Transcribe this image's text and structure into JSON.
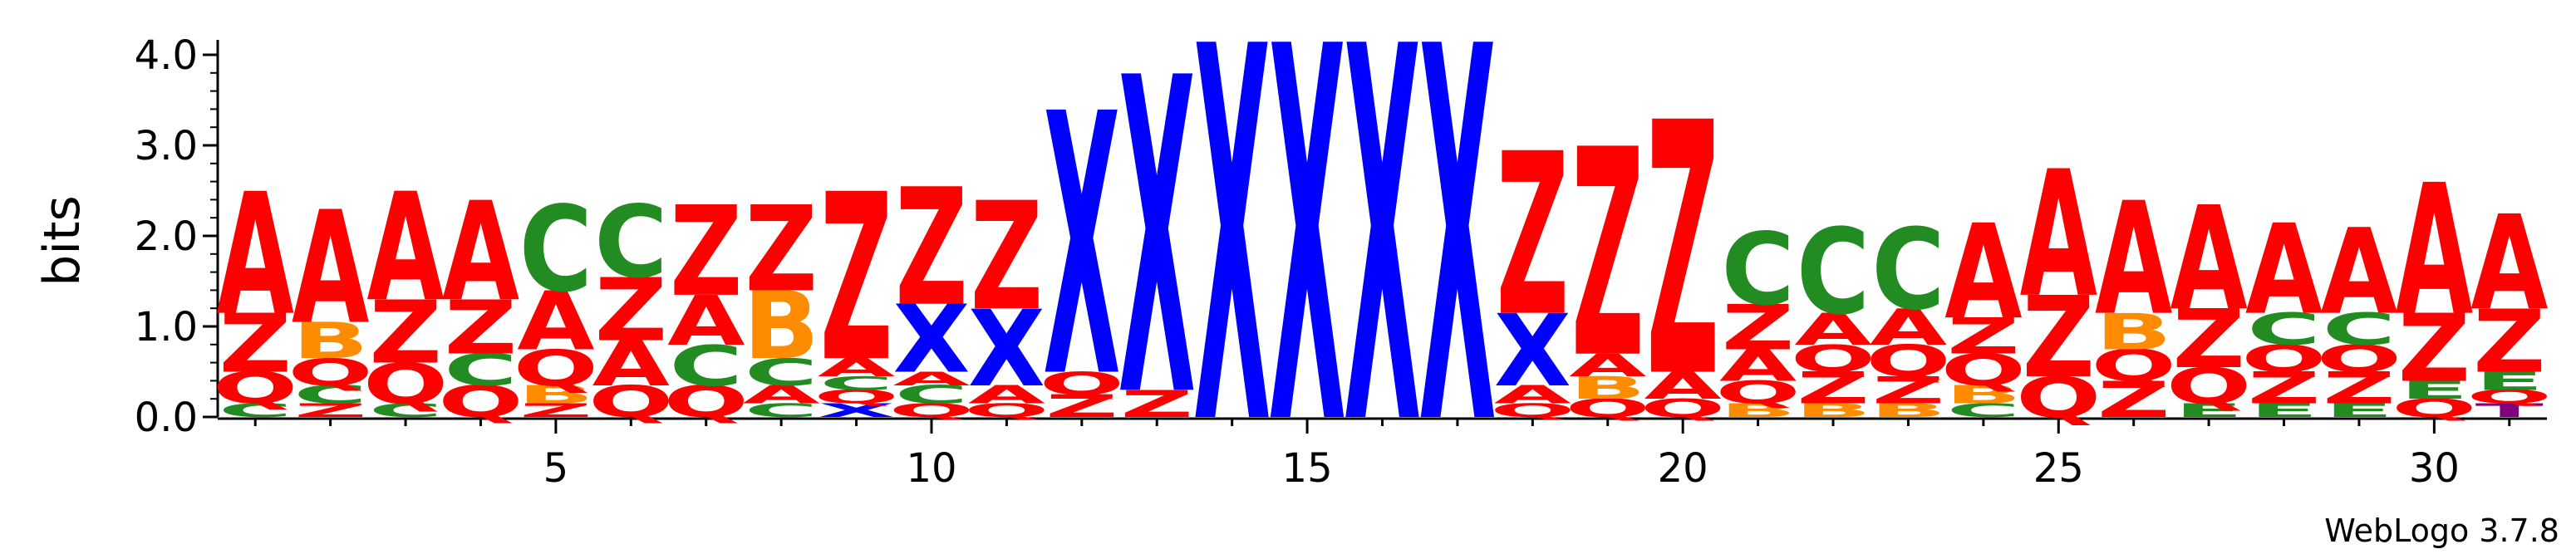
{
  "chart_data": {
    "type": "sequence-logo",
    "ylabel": "bits",
    "ylim": [
      0,
      4.0
    ],
    "y_ticks": [
      "0.0",
      "1.0",
      "2.0",
      "3.0",
      "4.0"
    ],
    "x_ticks": [
      5,
      10,
      15,
      20,
      25,
      30
    ],
    "positions_count": 31,
    "footer": "WebLogo 3.7.8",
    "colors": {
      "A": "#ff0000",
      "Z": "#ff0000",
      "Q": "#ff0000",
      "C": "#228b22",
      "E": "#228b22",
      "B": "#ff8c00",
      "X": "#0000ff",
      "T": "#800080"
    },
    "stacks": [
      {
        "pos": 1,
        "letters": [
          [
            "C",
            0.15
          ],
          [
            "Q",
            0.35
          ],
          [
            "Z",
            0.65
          ],
          [
            "A",
            1.35
          ]
        ]
      },
      {
        "pos": 2,
        "letters": [
          [
            "Z",
            0.15
          ],
          [
            "C",
            0.2
          ],
          [
            "Q",
            0.3
          ],
          [
            "B",
            0.4
          ],
          [
            "A",
            1.25
          ]
        ]
      },
      {
        "pos": 3,
        "letters": [
          [
            "C",
            0.15
          ],
          [
            "Q",
            0.45
          ],
          [
            "Z",
            0.7
          ],
          [
            "A",
            1.2
          ]
        ]
      },
      {
        "pos": 4,
        "letters": [
          [
            "Q",
            0.35
          ],
          [
            "C",
            0.35
          ],
          [
            "Z",
            0.6
          ],
          [
            "A",
            1.1
          ]
        ]
      },
      {
        "pos": 5,
        "letters": [
          [
            "Z",
            0.15
          ],
          [
            "B",
            0.2
          ],
          [
            "Q",
            0.4
          ],
          [
            "A",
            0.65
          ],
          [
            "C",
            0.95
          ]
        ]
      },
      {
        "pos": 6,
        "letters": [
          [
            "Q",
            0.35
          ],
          [
            "A",
            0.5
          ],
          [
            "Z",
            0.7
          ],
          [
            "C",
            0.8
          ]
        ]
      },
      {
        "pos": 7,
        "letters": [
          [
            "Q",
            0.35
          ],
          [
            "C",
            0.45
          ],
          [
            "A",
            0.55
          ],
          [
            "Z",
            1.0
          ]
        ]
      },
      {
        "pos": 8,
        "letters": [
          [
            "C",
            0.15
          ],
          [
            "A",
            0.2
          ],
          [
            "C",
            0.3
          ],
          [
            "B",
            0.75
          ],
          [
            "Z",
            0.95
          ]
        ]
      },
      {
        "pos": 9,
        "letters": [
          [
            "X",
            0.15
          ],
          [
            "Q",
            0.15
          ],
          [
            "C",
            0.15
          ],
          [
            "A",
            0.2
          ],
          [
            "Z",
            1.85
          ]
        ]
      },
      {
        "pos": 10,
        "letters": [
          [
            "Q",
            0.15
          ],
          [
            "C",
            0.2
          ],
          [
            "A",
            0.15
          ],
          [
            "X",
            0.75
          ],
          [
            "Z",
            1.3
          ]
        ]
      },
      {
        "pos": 11,
        "letters": [
          [
            "Q",
            0.15
          ],
          [
            "A",
            0.2
          ],
          [
            "X",
            0.85
          ],
          [
            "Z",
            1.2
          ]
        ]
      },
      {
        "pos": 12,
        "letters": [
          [
            "Z",
            0.25
          ],
          [
            "Q",
            0.25
          ],
          [
            "X",
            2.9
          ]
        ]
      },
      {
        "pos": 13,
        "letters": [
          [
            "Z",
            0.3
          ],
          [
            "X",
            3.5
          ]
        ]
      },
      {
        "pos": 14,
        "letters": [
          [
            "X",
            4.15
          ]
        ]
      },
      {
        "pos": 15,
        "letters": [
          [
            "X",
            4.15
          ]
        ]
      },
      {
        "pos": 16,
        "letters": [
          [
            "X",
            4.15
          ]
        ]
      },
      {
        "pos": 17,
        "letters": [
          [
            "X",
            4.15
          ]
        ]
      },
      {
        "pos": 18,
        "letters": [
          [
            "Q",
            0.15
          ],
          [
            "A",
            0.2
          ],
          [
            "X",
            0.8
          ],
          [
            "Z",
            1.8
          ]
        ]
      },
      {
        "pos": 19,
        "letters": [
          [
            "Q",
            0.2
          ],
          [
            "B",
            0.25
          ],
          [
            "A",
            0.25
          ],
          [
            "Z",
            2.3
          ]
        ]
      },
      {
        "pos": 20,
        "letters": [
          [
            "Q",
            0.2
          ],
          [
            "A",
            0.3
          ],
          [
            "Z",
            2.8
          ]
        ]
      },
      {
        "pos": 21,
        "letters": [
          [
            "B",
            0.15
          ],
          [
            "Q",
            0.25
          ],
          [
            "A",
            0.35
          ],
          [
            "Z",
            0.5
          ],
          [
            "C",
            0.8
          ]
        ]
      },
      {
        "pos": 22,
        "letters": [
          [
            "B",
            0.15
          ],
          [
            "Z",
            0.35
          ],
          [
            "Q",
            0.3
          ],
          [
            "A",
            0.35
          ],
          [
            "C",
            0.95
          ]
        ]
      },
      {
        "pos": 23,
        "letters": [
          [
            "B",
            0.15
          ],
          [
            "Z",
            0.3
          ],
          [
            "Q",
            0.35
          ],
          [
            "A",
            0.4
          ],
          [
            "C",
            0.9
          ]
        ]
      },
      {
        "pos": 24,
        "letters": [
          [
            "C",
            0.15
          ],
          [
            "B",
            0.2
          ],
          [
            "Q",
            0.35
          ],
          [
            "Z",
            0.4
          ],
          [
            "A",
            1.05
          ]
        ]
      },
      {
        "pos": 25,
        "letters": [
          [
            "Q",
            0.45
          ],
          [
            "Z",
            0.9
          ],
          [
            "A",
            1.4
          ]
        ]
      },
      {
        "pos": 26,
        "letters": [
          [
            "Z",
            0.4
          ],
          [
            "Q",
            0.35
          ],
          [
            "B",
            0.4
          ],
          [
            "A",
            1.25
          ]
        ]
      },
      {
        "pos": 27,
        "letters": [
          [
            "E",
            0.15
          ],
          [
            "Q",
            0.4
          ],
          [
            "Z",
            0.65
          ],
          [
            "A",
            1.15
          ]
        ]
      },
      {
        "pos": 28,
        "letters": [
          [
            "E",
            0.15
          ],
          [
            "Z",
            0.35
          ],
          [
            "Q",
            0.3
          ],
          [
            "C",
            0.35
          ],
          [
            "A",
            1.0
          ]
        ]
      },
      {
        "pos": 29,
        "letters": [
          [
            "E",
            0.15
          ],
          [
            "Z",
            0.35
          ],
          [
            "Q",
            0.3
          ],
          [
            "C",
            0.35
          ],
          [
            "A",
            0.95
          ]
        ]
      },
      {
        "pos": 30,
        "letters": [
          [
            "Q",
            0.2
          ],
          [
            "E",
            0.2
          ],
          [
            "Z",
            0.75
          ],
          [
            "A",
            1.45
          ]
        ]
      },
      {
        "pos": 31,
        "letters": [
          [
            "T",
            0.15
          ],
          [
            "Q",
            0.15
          ],
          [
            "E",
            0.2
          ],
          [
            "Z",
            0.7
          ],
          [
            "A",
            1.05
          ]
        ]
      }
    ]
  }
}
